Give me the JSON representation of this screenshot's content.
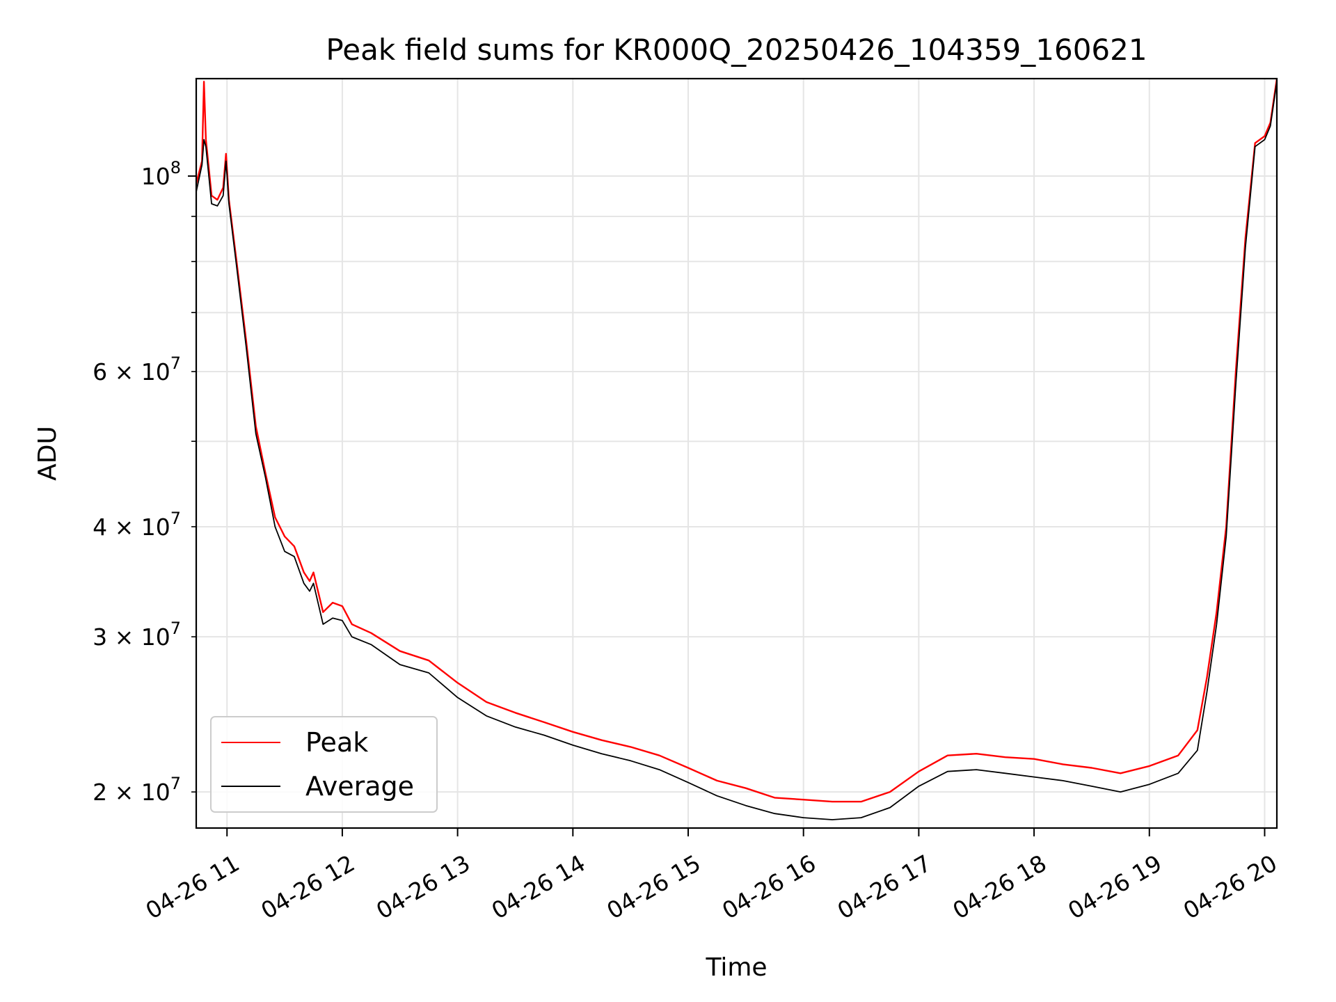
{
  "chart_data": {
    "type": "line",
    "title": "Peak field sums for KR000Q_20250426_104359_160621",
    "xlabel": "Time",
    "ylabel": "ADU",
    "x_scale": "time",
    "y_scale": "log",
    "xlim": [
      "2025-04-26 10:43:59",
      "2025-04-26 20:06:21"
    ],
    "ylim": [
      18200000,
      129000000
    ],
    "grid": true,
    "legend_position": "lower-left",
    "x_ticks": [
      {
        "value": "2025-04-26 11:00",
        "label": "04-26 11"
      },
      {
        "value": "2025-04-26 12:00",
        "label": "04-26 12"
      },
      {
        "value": "2025-04-26 13:00",
        "label": "04-26 13"
      },
      {
        "value": "2025-04-26 14:00",
        "label": "04-26 14"
      },
      {
        "value": "2025-04-26 15:00",
        "label": "04-26 15"
      },
      {
        "value": "2025-04-26 16:00",
        "label": "04-26 16"
      },
      {
        "value": "2025-04-26 17:00",
        "label": "04-26 17"
      },
      {
        "value": "2025-04-26 18:00",
        "label": "04-26 18"
      },
      {
        "value": "2025-04-26 19:00",
        "label": "04-26 19"
      },
      {
        "value": "2025-04-26 20:00",
        "label": "04-26 20"
      }
    ],
    "y_major_ticks": [
      {
        "value": 100000000,
        "base": "10",
        "exp": "8"
      }
    ],
    "y_minor_ticks": [
      {
        "value": 20000000,
        "mant": "2",
        "base": "10",
        "exp": "7"
      },
      {
        "value": 30000000,
        "mant": "3",
        "base": "10",
        "exp": "7"
      },
      {
        "value": 40000000,
        "mant": "4",
        "base": "10",
        "exp": "7"
      },
      {
        "value": 50000000,
        "label": ""
      },
      {
        "value": 60000000,
        "mant": "6",
        "base": "10",
        "exp": "7"
      },
      {
        "value": 70000000,
        "label": ""
      },
      {
        "value": 80000000,
        "label": ""
      },
      {
        "value": 90000000,
        "label": ""
      }
    ],
    "series": [
      {
        "name": "Peak",
        "color": "#ff0000",
        "points": [
          [
            "2025-04-26 10:43:59",
            98000000
          ],
          [
            "2025-04-26 10:47:00",
            104000000
          ],
          [
            "2025-04-26 10:48:00",
            128000000
          ],
          [
            "2025-04-26 10:49:00",
            110000000
          ],
          [
            "2025-04-26 10:52:00",
            95000000
          ],
          [
            "2025-04-26 10:55:00",
            94000000
          ],
          [
            "2025-04-26 10:58:00",
            97000000
          ],
          [
            "2025-04-26 10:59:30",
            106000000
          ],
          [
            "2025-04-26 11:01:00",
            94000000
          ],
          [
            "2025-04-26 11:05:00",
            80000000
          ],
          [
            "2025-04-26 11:10:00",
            65000000
          ],
          [
            "2025-04-26 11:15:00",
            52000000
          ],
          [
            "2025-04-26 11:20:00",
            46000000
          ],
          [
            "2025-04-26 11:25:00",
            41000000
          ],
          [
            "2025-04-26 11:30:00",
            39000000
          ],
          [
            "2025-04-26 11:35:00",
            38000000
          ],
          [
            "2025-04-26 11:40:00",
            35500000
          ],
          [
            "2025-04-26 11:43:00",
            34700000
          ],
          [
            "2025-04-26 11:45:00",
            35500000
          ],
          [
            "2025-04-26 11:50:00",
            32000000
          ],
          [
            "2025-04-26 11:55:00",
            32800000
          ],
          [
            "2025-04-26 12:00:00",
            32500000
          ],
          [
            "2025-04-26 12:05:00",
            31000000
          ],
          [
            "2025-04-26 12:15:00",
            30300000
          ],
          [
            "2025-04-26 12:30:00",
            28900000
          ],
          [
            "2025-04-26 12:45:00",
            28200000
          ],
          [
            "2025-04-26 13:00:00",
            26600000
          ],
          [
            "2025-04-26 13:15:00",
            25300000
          ],
          [
            "2025-04-26 13:30:00",
            24600000
          ],
          [
            "2025-04-26 13:45:00",
            24000000
          ],
          [
            "2025-04-26 14:00:00",
            23400000
          ],
          [
            "2025-04-26 14:15:00",
            22900000
          ],
          [
            "2025-04-26 14:30:00",
            22500000
          ],
          [
            "2025-04-26 14:45:00",
            22000000
          ],
          [
            "2025-04-26 15:00:00",
            21300000
          ],
          [
            "2025-04-26 15:15:00",
            20600000
          ],
          [
            "2025-04-26 15:30:00",
            20200000
          ],
          [
            "2025-04-26 15:45:00",
            19700000
          ],
          [
            "2025-04-26 16:00:00",
            19600000
          ],
          [
            "2025-04-26 16:15:00",
            19500000
          ],
          [
            "2025-04-26 16:30:00",
            19500000
          ],
          [
            "2025-04-26 16:45:00",
            20000000
          ],
          [
            "2025-04-26 17:00:00",
            21100000
          ],
          [
            "2025-04-26 17:15:00",
            22000000
          ],
          [
            "2025-04-26 17:30:00",
            22100000
          ],
          [
            "2025-04-26 17:45:00",
            21900000
          ],
          [
            "2025-04-26 18:00:00",
            21800000
          ],
          [
            "2025-04-26 18:15:00",
            21500000
          ],
          [
            "2025-04-26 18:30:00",
            21300000
          ],
          [
            "2025-04-26 18:45:00",
            21000000
          ],
          [
            "2025-04-26 19:00:00",
            21400000
          ],
          [
            "2025-04-26 19:15:00",
            22000000
          ],
          [
            "2025-04-26 19:25:00",
            23500000
          ],
          [
            "2025-04-26 19:30:00",
            27000000
          ],
          [
            "2025-04-26 19:35:00",
            32000000
          ],
          [
            "2025-04-26 19:40:00",
            40000000
          ],
          [
            "2025-04-26 19:45:00",
            60000000
          ],
          [
            "2025-04-26 19:50:00",
            85000000
          ],
          [
            "2025-04-26 19:55:00",
            109000000
          ],
          [
            "2025-04-26 20:00:00",
            111000000
          ],
          [
            "2025-04-26 20:03:00",
            115000000
          ],
          [
            "2025-04-26 20:06:21",
            129000000
          ]
        ]
      },
      {
        "name": "Average",
        "color": "#000000",
        "points": [
          [
            "2025-04-26 10:43:59",
            96000000
          ],
          [
            "2025-04-26 10:47:00",
            103000000
          ],
          [
            "2025-04-26 10:48:00",
            110000000
          ],
          [
            "2025-04-26 10:49:00",
            108000000
          ],
          [
            "2025-04-26 10:52:00",
            93000000
          ],
          [
            "2025-04-26 10:55:00",
            92500000
          ],
          [
            "2025-04-26 10:58:00",
            95000000
          ],
          [
            "2025-04-26 10:59:30",
            104000000
          ],
          [
            "2025-04-26 11:01:00",
            93000000
          ],
          [
            "2025-04-26 11:05:00",
            79000000
          ],
          [
            "2025-04-26 11:10:00",
            64000000
          ],
          [
            "2025-04-26 11:15:00",
            51000000
          ],
          [
            "2025-04-26 11:20:00",
            45500000
          ],
          [
            "2025-04-26 11:25:00",
            40000000
          ],
          [
            "2025-04-26 11:30:00",
            37500000
          ],
          [
            "2025-04-26 11:35:00",
            37000000
          ],
          [
            "2025-04-26 11:40:00",
            34500000
          ],
          [
            "2025-04-26 11:43:00",
            33800000
          ],
          [
            "2025-04-26 11:45:00",
            34500000
          ],
          [
            "2025-04-26 11:50:00",
            31000000
          ],
          [
            "2025-04-26 11:55:00",
            31500000
          ],
          [
            "2025-04-26 12:00:00",
            31300000
          ],
          [
            "2025-04-26 12:05:00",
            30000000
          ],
          [
            "2025-04-26 12:15:00",
            29400000
          ],
          [
            "2025-04-26 12:30:00",
            27900000
          ],
          [
            "2025-04-26 12:45:00",
            27300000
          ],
          [
            "2025-04-26 13:00:00",
            25600000
          ],
          [
            "2025-04-26 13:15:00",
            24400000
          ],
          [
            "2025-04-26 13:30:00",
            23700000
          ],
          [
            "2025-04-26 13:45:00",
            23200000
          ],
          [
            "2025-04-26 14:00:00",
            22600000
          ],
          [
            "2025-04-26 14:15:00",
            22100000
          ],
          [
            "2025-04-26 14:30:00",
            21700000
          ],
          [
            "2025-04-26 14:45:00",
            21200000
          ],
          [
            "2025-04-26 15:00:00",
            20500000
          ],
          [
            "2025-04-26 15:15:00",
            19800000
          ],
          [
            "2025-04-26 15:30:00",
            19300000
          ],
          [
            "2025-04-26 15:45:00",
            18900000
          ],
          [
            "2025-04-26 16:00:00",
            18700000
          ],
          [
            "2025-04-26 16:15:00",
            18600000
          ],
          [
            "2025-04-26 16:30:00",
            18700000
          ],
          [
            "2025-04-26 16:45:00",
            19200000
          ],
          [
            "2025-04-26 17:00:00",
            20300000
          ],
          [
            "2025-04-26 17:15:00",
            21100000
          ],
          [
            "2025-04-26 17:30:00",
            21200000
          ],
          [
            "2025-04-26 17:45:00",
            21000000
          ],
          [
            "2025-04-26 18:00:00",
            20800000
          ],
          [
            "2025-04-26 18:15:00",
            20600000
          ],
          [
            "2025-04-26 18:30:00",
            20300000
          ],
          [
            "2025-04-26 18:45:00",
            20000000
          ],
          [
            "2025-04-26 19:00:00",
            20400000
          ],
          [
            "2025-04-26 19:15:00",
            21000000
          ],
          [
            "2025-04-26 19:25:00",
            22300000
          ],
          [
            "2025-04-26 19:30:00",
            26000000
          ],
          [
            "2025-04-26 19:35:00",
            31000000
          ],
          [
            "2025-04-26 19:40:00",
            39000000
          ],
          [
            "2025-04-26 19:45:00",
            58000000
          ],
          [
            "2025-04-26 19:50:00",
            83000000
          ],
          [
            "2025-04-26 19:55:00",
            108000000
          ],
          [
            "2025-04-26 20:00:00",
            110000000
          ],
          [
            "2025-04-26 20:03:00",
            114000000
          ],
          [
            "2025-04-26 20:06:21",
            128000000
          ]
        ]
      }
    ]
  }
}
